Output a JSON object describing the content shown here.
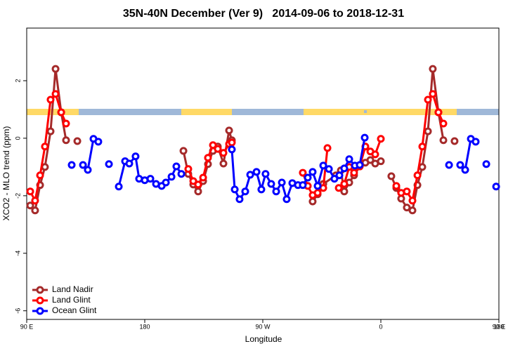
{
  "chart_data": {
    "type": "line",
    "title": "35N-40N December (Ver 9)   2014-09-06 to 2018-12-31",
    "x_label": "Longitude",
    "y_label": "XCO2 - MLO trend (ppm)",
    "xlim": [
      90,
      450
    ],
    "xticks": [
      {
        "value": 90,
        "label": "90 E"
      },
      180,
      {
        "value": 270,
        "label": "90 W"
      },
      {
        "value": 360,
        "label": "0"
      },
      {
        "value": 450,
        "label": "90 E"
      },
      {
        "value": 540,
        "label": "180"
      }
    ],
    "ylim": [
      -6.3,
      3.83
    ],
    "yticks": [
      2,
      0,
      -2,
      -4,
      -6
    ],
    "legend": "bottom-left",
    "series": [
      {
        "name": "Land Nadir",
        "color": "#a52a2a",
        "x": [
          92.7,
          96.4,
          100.2,
          103.9,
          108.2,
          112,
          116.3,
          120,
          null,
          128.6,
          null,
          209.5,
          213.2,
          217,
          220.7,
          224.5,
          228.2,
          232,
          235.7,
          240,
          244.3,
          246.4,
          null,
          308,
          311.8,
          316.1,
          325.7,
          329.5,
          332.1,
          335.9,
          339.6,
          343.9,
          348.2,
          352,
          355.7,
          360,
          null,
          368,
          371.8,
          375.5,
          379.8,
          384.1,
          387.9,
          391.6,
          395.9,
          399.6,
          403.9,
          407.7,
          null,
          416.2
        ],
        "values": [
          -2.34,
          -2.51,
          -1.63,
          -1.0,
          0.24,
          2.41,
          0.9,
          -0.07,
          null,
          -0.1,
          null,
          -0.44,
          -1.24,
          -1.61,
          -1.85,
          -1.49,
          -0.9,
          -0.44,
          -0.29,
          -0.88,
          0.27,
          -0.07,
          null,
          -2.2,
          -1.95,
          -1.59,
          -1.29,
          -1.12,
          -1.85,
          -1.54,
          -1.29,
          -0.98,
          -0.85,
          -0.76,
          -0.88,
          -0.8,
          null,
          -1.32,
          -1.73,
          -2.1,
          -2.41,
          -2.51,
          -1.63,
          -1.0,
          0.24,
          2.41,
          0.9,
          -0.07,
          null,
          -0.1
        ]
      },
      {
        "name": "Land Glint",
        "color": "#ff0000",
        "x": [
          92.7,
          96.4,
          100.2,
          103.9,
          108.2,
          112,
          116.3,
          120,
          null,
          213.2,
          217,
          220.7,
          224.5,
          228.2,
          232,
          235.7,
          240,
          244.3,
          246.4,
          null,
          300.5,
          304.3,
          308,
          311.8,
          316.1,
          319.3,
          null,
          327.9,
          332.1,
          335.9,
          339.6,
          343.9,
          348.2,
          352,
          355.7,
          360,
          null,
          371.8,
          375.5,
          379.8,
          384.1,
          387.9,
          391.6,
          395.9,
          399.6,
          403.9,
          407.7
        ],
        "values": [
          -1.85,
          -2.17,
          -1.29,
          -0.29,
          1.34,
          1.54,
          0.9,
          0.51,
          null,
          -1.07,
          -1.49,
          -1.61,
          -1.37,
          -0.68,
          -0.24,
          -0.37,
          -0.51,
          -0.2,
          -0.15,
          null,
          -1.2,
          -1.66,
          -1.98,
          -1.9,
          -1.73,
          -0.34,
          null,
          -1.73,
          -1.59,
          -1.0,
          -1.2,
          -0.98,
          -0.29,
          -0.46,
          -0.56,
          -0.02,
          null,
          -1.66,
          -1.9,
          -1.85,
          -2.17,
          -1.29,
          -0.29,
          1.34,
          1.54,
          0.9,
          0.51
        ]
      },
      {
        "name": "Ocean Glint",
        "color": "#0000ff",
        "x": [
          124.3,
          null,
          132.9,
          136.6,
          140.9,
          144.6,
          null,
          152.7,
          null,
          160.2,
          165,
          168.2,
          173,
          175.7,
          180,
          184.3,
          188.6,
          192.9,
          196.1,
          200.4,
          204.1,
          207.9,
          null,
          246.4,
          248.6,
          252.3,
          256.6,
          260.4,
          265.2,
          268.9,
          272.1,
          276.4,
          280.2,
          284.5,
          288.2,
          292.5,
          296.8,
          300.5,
          304.3,
          308,
          311.8,
          316.1,
          320.4,
          324.6,
          328.4,
          332.1,
          335.9,
          340.2,
          343.9,
          347.7,
          null,
          412,
          null,
          420.5,
          424.3,
          428.6,
          432.3,
          null,
          440.4,
          null,
          447.9
        ],
        "values": [
          -0.93,
          null,
          -0.93,
          -1.1,
          -0.02,
          -0.12,
          null,
          -0.9,
          null,
          -1.68,
          -0.8,
          -0.88,
          -0.63,
          -1.41,
          -1.46,
          -1.41,
          -1.59,
          -1.66,
          -1.54,
          -1.34,
          -0.98,
          -1.24,
          null,
          -0.39,
          -1.78,
          -2.12,
          -1.85,
          -1.27,
          -1.17,
          -1.78,
          -1.24,
          -1.59,
          -1.85,
          -1.54,
          -2.12,
          -1.56,
          -1.63,
          -1.63,
          -1.37,
          -1.17,
          -1.66,
          -0.95,
          -1.07,
          -1.41,
          -1.29,
          -1.05,
          -0.73,
          -0.95,
          -0.93,
          0.02,
          null,
          -0.93,
          null,
          -0.93,
          -1.1,
          -0.02,
          -0.12,
          null,
          -0.9,
          null,
          -1.68
        ]
      }
    ]
  }
}
